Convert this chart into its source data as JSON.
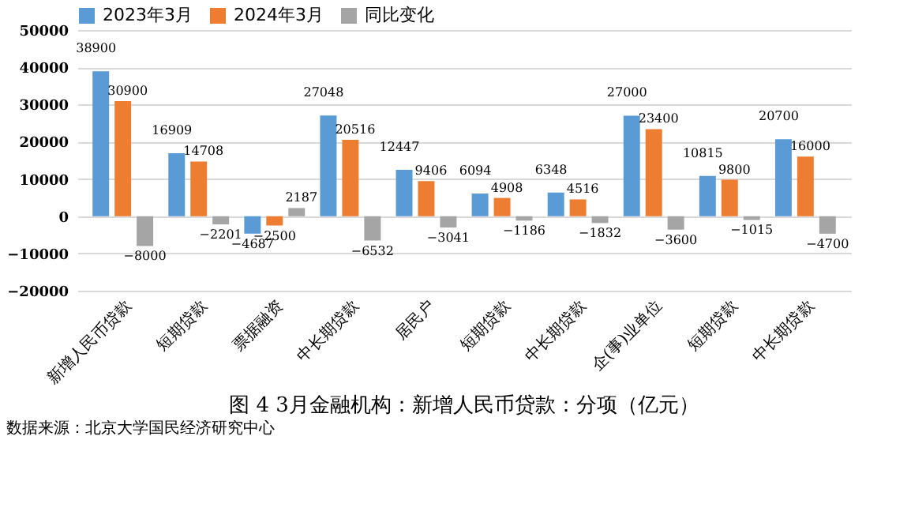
{
  "chart_data": {
    "type": "bar",
    "title": "图 4 3月金融机构：新增人民币贷款：分项（亿元）",
    "categories": [
      "新增人民币贷款",
      "短期贷款",
      "票据融资",
      "中长期贷款",
      "居民户",
      "短期贷款",
      "中长期贷款",
      "企(事)业单位",
      "短期贷款",
      "中长期贷款"
    ],
    "series": [
      {
        "name": "2023年3月",
        "color": "#5b9bd5",
        "values": [
          38900,
          16909,
          -4687,
          27048,
          12447,
          6094,
          6348,
          27000,
          10815,
          20700
        ]
      },
      {
        "name": "2024年3月",
        "color": "#ed7d31",
        "values": [
          30900,
          14708,
          -2500,
          20516,
          9406,
          4908,
          4516,
          23400,
          9800,
          16000
        ]
      },
      {
        "name": "同比变化",
        "color": "#a5a5a5",
        "values": [
          -8000,
          -2201,
          2187,
          -6532,
          -3041,
          -1186,
          -1832,
          -3600,
          -1015,
          -4700
        ]
      }
    ],
    "ylim": [
      -20000,
      50000
    ],
    "yticks": [
      -20000,
      -10000,
      0,
      10000,
      20000,
      30000,
      40000,
      50000
    ],
    "grid": "y",
    "legend": "top",
    "data_labels": true,
    "annotations": [
      "数据来源：北京大学国民经济研究中心"
    ]
  }
}
